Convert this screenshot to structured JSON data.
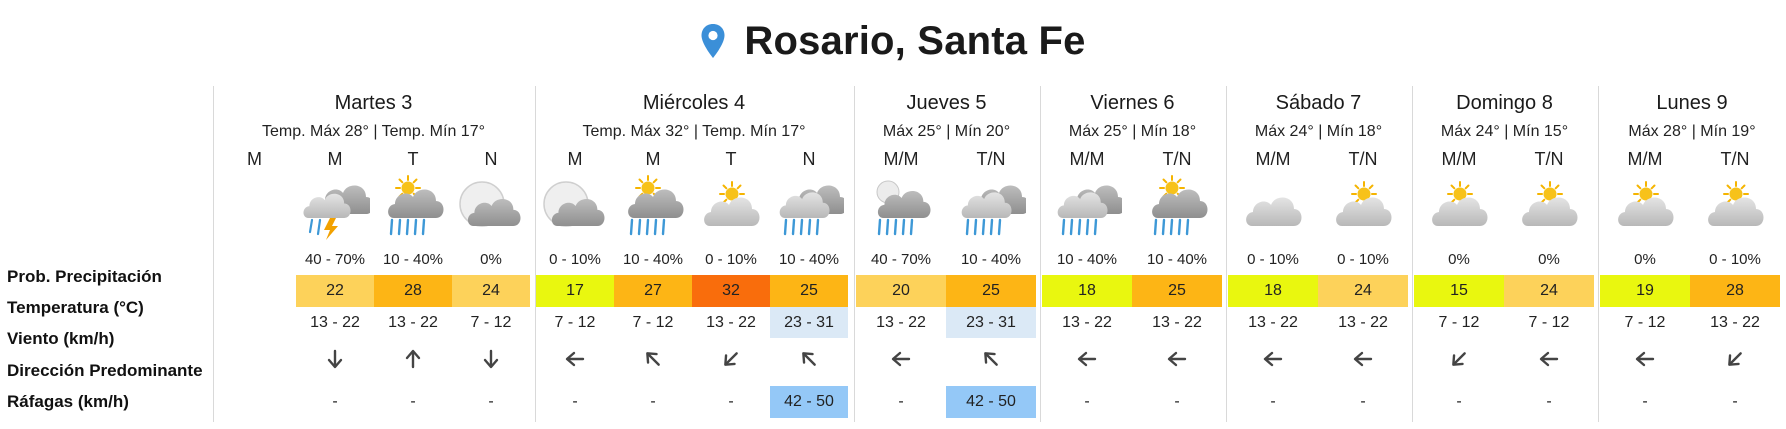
{
  "header": {
    "city": "Rosario, Santa Fe"
  },
  "row_labels": {
    "prob": "Prob. Precipitación",
    "temp": "Temperatura (°C)",
    "wind": "Viento (km/h)",
    "direction": "Dirección Predominante",
    "gusts": "Ráfagas (km/h)"
  },
  "colors": {
    "wind_highlight": "#dbe9f6",
    "gust_highlight": "#94c8f7",
    "pin": "#3b8fd8"
  },
  "days": [
    {
      "title": "Martes 3",
      "subtitle": "Temp. Máx 28° | Temp. Mín 17°",
      "periods": [
        {
          "label": "M",
          "icon": "",
          "prob": "",
          "temp": "",
          "temp_color": "",
          "wind": "",
          "wind_highlight": false,
          "dir": "",
          "gust": "",
          "gust_highlight": false
        },
        {
          "label": "M",
          "icon": "storm-cloud-icon",
          "prob": "40 - 70%",
          "temp": "22",
          "temp_color": "#fdd25a",
          "wind": "13 - 22",
          "wind_highlight": false,
          "dir": "arrow-down-icon",
          "gust": "-",
          "gust_highlight": false
        },
        {
          "label": "T",
          "icon": "sun-rain-cloud-icon",
          "prob": "10 - 40%",
          "temp": "28",
          "temp_color": "#fdb515",
          "wind": "13 - 22",
          "wind_highlight": false,
          "dir": "arrow-up-icon",
          "gust": "-",
          "gust_highlight": false
        },
        {
          "label": "N",
          "icon": "moon-cloud-icon",
          "prob": "0%",
          "temp": "24",
          "temp_color": "#fdd25a",
          "wind": "7 - 12",
          "wind_highlight": false,
          "dir": "arrow-down-icon",
          "gust": "-",
          "gust_highlight": false
        }
      ]
    },
    {
      "title": "Miércoles 4",
      "subtitle": "Temp. Máx 32° | Temp. Mín 17°",
      "periods": [
        {
          "label": "M",
          "icon": "moon-cloud-icon",
          "prob": "0 - 10%",
          "temp": "17",
          "temp_color": "#e9f70f",
          "wind": "7 - 12",
          "wind_highlight": false,
          "dir": "arrow-left-icon",
          "gust": "-",
          "gust_highlight": false
        },
        {
          "label": "M",
          "icon": "sun-rain-cloud-icon",
          "prob": "10 - 40%",
          "temp": "27",
          "temp_color": "#fdb515",
          "wind": "7 - 12",
          "wind_highlight": false,
          "dir": "arrow-up-left-icon",
          "gust": "-",
          "gust_highlight": false
        },
        {
          "label": "T",
          "icon": "sun-cloud-icon",
          "prob": "0 - 10%",
          "temp": "32",
          "temp_color": "#f96d0c",
          "wind": "13 - 22",
          "wind_highlight": false,
          "dir": "arrow-down-left-icon",
          "gust": "-",
          "gust_highlight": false
        },
        {
          "label": "N",
          "icon": "rain-cloud-icon",
          "prob": "10 - 40%",
          "temp": "25",
          "temp_color": "#fdb515",
          "wind": "23 - 31",
          "wind_highlight": true,
          "dir": "arrow-up-left-icon",
          "gust": "42 - 50",
          "gust_highlight": true
        }
      ]
    },
    {
      "title": "Jueves 5",
      "subtitle": "Máx 25° | Mín 20°",
      "periods": [
        {
          "label": "M/M",
          "icon": "moon-rain-cloud-icon",
          "prob": "40 - 70%",
          "temp": "20",
          "temp_color": "#fdd25a",
          "wind": "13 - 22",
          "wind_highlight": false,
          "dir": "arrow-left-icon",
          "gust": "-",
          "gust_highlight": false
        },
        {
          "label": "T/N",
          "icon": "rain-cloud-icon",
          "prob": "10 - 40%",
          "temp": "25",
          "temp_color": "#fdb515",
          "wind": "23 - 31",
          "wind_highlight": true,
          "dir": "arrow-up-left-icon",
          "gust": "42 - 50",
          "gust_highlight": true
        }
      ]
    },
    {
      "title": "Viernes 6",
      "subtitle": "Máx 25° | Mín 18°",
      "periods": [
        {
          "label": "M/M",
          "icon": "rain-cloud-icon",
          "prob": "10 - 40%",
          "temp": "18",
          "temp_color": "#e9f70f",
          "wind": "13 - 22",
          "wind_highlight": false,
          "dir": "arrow-left-icon",
          "gust": "-",
          "gust_highlight": false
        },
        {
          "label": "T/N",
          "icon": "sun-rain-cloud-icon",
          "prob": "10 - 40%",
          "temp": "25",
          "temp_color": "#fdb515",
          "wind": "13 - 22",
          "wind_highlight": false,
          "dir": "arrow-left-icon",
          "gust": "-",
          "gust_highlight": false
        }
      ]
    },
    {
      "title": "Sábado 7",
      "subtitle": "Máx 24° | Mín 18°",
      "periods": [
        {
          "label": "M/M",
          "icon": "cloud-icon",
          "prob": "0 - 10%",
          "temp": "18",
          "temp_color": "#e9f70f",
          "wind": "13 - 22",
          "wind_highlight": false,
          "dir": "arrow-left-icon",
          "gust": "-",
          "gust_highlight": false
        },
        {
          "label": "T/N",
          "icon": "sun-cloud-icon",
          "prob": "0 - 10%",
          "temp": "24",
          "temp_color": "#fdd25a",
          "wind": "13 - 22",
          "wind_highlight": false,
          "dir": "arrow-left-icon",
          "gust": "-",
          "gust_highlight": false
        }
      ]
    },
    {
      "title": "Domingo 8",
      "subtitle": "Máx 24° | Mín 15°",
      "periods": [
        {
          "label": "M/M",
          "icon": "sun-cloud-icon",
          "prob": "0%",
          "temp": "15",
          "temp_color": "#e9f70f",
          "wind": "7 - 12",
          "wind_highlight": false,
          "dir": "arrow-down-left-icon",
          "gust": "-",
          "gust_highlight": false
        },
        {
          "label": "T/N",
          "icon": "sun-cloud-icon",
          "prob": "0%",
          "temp": "24",
          "temp_color": "#fdd25a",
          "wind": "7 - 12",
          "wind_highlight": false,
          "dir": "arrow-left-icon",
          "gust": "-",
          "gust_highlight": false
        }
      ]
    },
    {
      "title": "Lunes 9",
      "subtitle": "Máx 28° | Mín 19°",
      "periods": [
        {
          "label": "M/M",
          "icon": "sun-cloud-icon",
          "prob": "0%",
          "temp": "19",
          "temp_color": "#e9f70f",
          "wind": "7 - 12",
          "wind_highlight": false,
          "dir": "arrow-left-icon",
          "gust": "-",
          "gust_highlight": false
        },
        {
          "label": "T/N",
          "icon": "sun-cloud-icon",
          "prob": "0 - 10%",
          "temp": "28",
          "temp_color": "#fdb515",
          "wind": "13 - 22",
          "wind_highlight": false,
          "dir": "arrow-down-left-icon",
          "gust": "-",
          "gust_highlight": false
        }
      ]
    }
  ]
}
